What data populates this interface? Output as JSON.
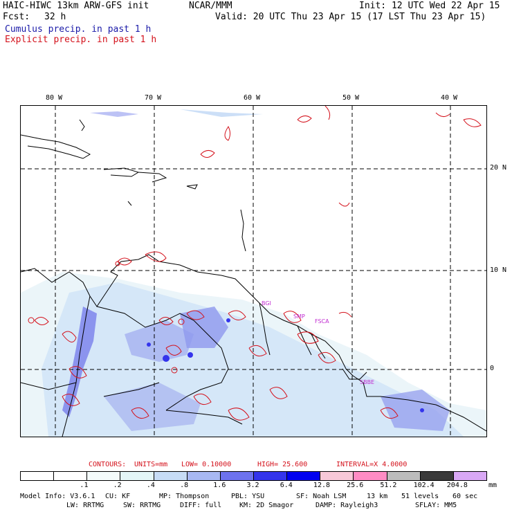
{
  "header": {
    "model_title": "HAIC-HIWC 13km ARW-GFS init",
    "org": "NCAR/MMM",
    "init": "Init: 12 UTC Wed 22 Apr 15",
    "fcst_label": "Fcst:",
    "fcst_value": "32 h",
    "valid": "Valid: 20 UTC Thu 23 Apr 15 (17 LST Thu 23 Apr 15)",
    "cumulus": "Cumulus precip. in past 1 h",
    "explicit": "Explicit precip. in past 1 h"
  },
  "map": {
    "lon_labels": [
      "80 W",
      "70 W",
      "60 W",
      "50 W",
      "40 W"
    ],
    "lat_labels": [
      "20 N",
      "10 N",
      "0"
    ],
    "site_labels": [
      "BGI",
      "SMP",
      "FSCA",
      "SBBE"
    ]
  },
  "contours": {
    "label": "CONTOURS:",
    "units": "UNITS=mm",
    "low": "LOW= 0.10000",
    "high": "HIGH= 25.600",
    "interval": "INTERVAL=X 4.0000"
  },
  "colorbar": {
    "ticks": [
      ".1",
      ".2",
      ".4",
      ".8",
      "1.6",
      "3.2",
      "6.4",
      "12.8",
      "25.6",
      "51.2",
      "102.4",
      "204.8"
    ],
    "unit": "mm",
    "colors": [
      "#ffffff",
      "#ffffff",
      "#f4fbfb",
      "#e4f6f7",
      "#c7dcf6",
      "#a8b8f2",
      "#6d72ee",
      "#3434ec",
      "#0000f0",
      "#f7c8d8",
      "#ff8cc4",
      "#bcbcbc",
      "#3a3a3a",
      "#d9a8f5"
    ]
  },
  "model_info": {
    "line1": [
      "Model Info: V3.6.1",
      "CU: KF",
      "MP: Thompson",
      "PBL: YSU",
      "SF: Noah LSM",
      "13 km",
      "51 levels",
      "60 sec"
    ],
    "line2": [
      "LW: RRTMG",
      "SW: RRTMG",
      "DIFF: full",
      "KM: 2D Smagor",
      "DAMP: Rayleigh3",
      "SFLAY: MM5"
    ]
  }
}
